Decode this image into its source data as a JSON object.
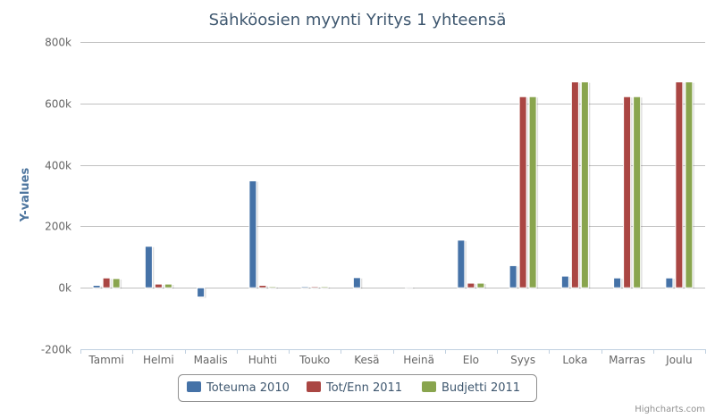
{
  "chart_data": {
    "type": "bar",
    "title": "Sähköosien myynti Yritys 1 yhteensä",
    "xlabel": "",
    "ylabel": "Y-values",
    "ylim": [
      -200000,
      800000
    ],
    "yticks": [
      -200000,
      0,
      200000,
      400000,
      600000,
      800000
    ],
    "ytick_labels": [
      "-200k",
      "0k",
      "200k",
      "400k",
      "600k",
      "800k"
    ],
    "categories": [
      "Tammi",
      "Helmi",
      "Maalis",
      "Huhti",
      "Touko",
      "Kesä",
      "Heinä",
      "Elo",
      "Syys",
      "Loka",
      "Marras",
      "Joulu"
    ],
    "series": [
      {
        "name": "Toteuma 2010",
        "color": "#4572A7",
        "values": [
          8000,
          135000,
          -30000,
          348000,
          4000,
          33000,
          3000,
          155000,
          72000,
          38000,
          32000,
          32000
        ]
      },
      {
        "name": "Tot/Enn 2011",
        "color": "#AA4643",
        "values": [
          32000,
          12000,
          null,
          8000,
          4000,
          null,
          null,
          15000,
          622000,
          670000,
          622000,
          670000
        ]
      },
      {
        "name": "Budjetti 2011",
        "color": "#89A54E",
        "values": [
          30000,
          12000,
          null,
          4000,
          4000,
          null,
          null,
          15000,
          622000,
          670000,
          622000,
          670000
        ]
      }
    ],
    "grid": true,
    "legend_position": "bottom-center"
  },
  "credits": "Highcharts.com"
}
